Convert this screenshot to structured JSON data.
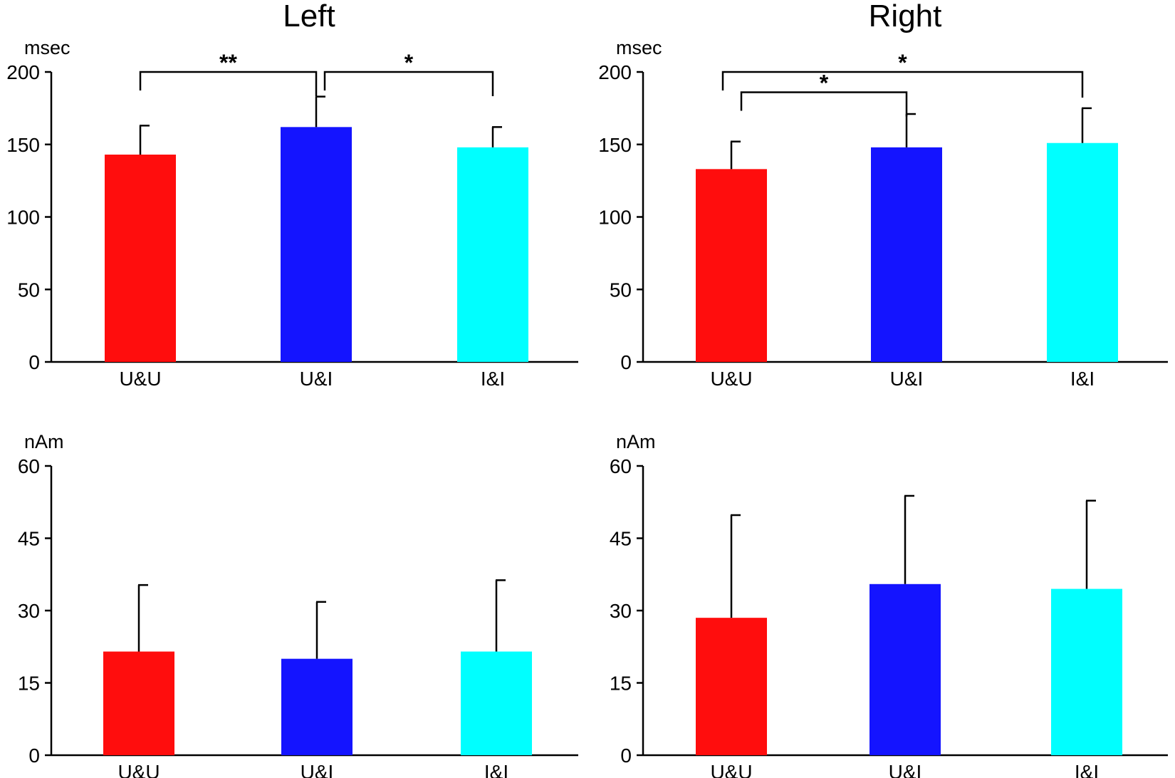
{
  "figure": {
    "left_title": "Left",
    "right_title": "Right",
    "colors": {
      "U&U": "#ff0d0d",
      "U&I": "#1414ff",
      "I&I": "#00ffff",
      "axis": "#000000"
    }
  },
  "chart_data": [
    {
      "id": "left-latency",
      "type": "bar",
      "column": "Left",
      "ylabel": "msec",
      "ylim": [
        0,
        200
      ],
      "yticks": [
        0,
        50,
        100,
        150,
        200
      ],
      "categories": [
        "U&U",
        "U&I",
        "I&I"
      ],
      "values": [
        143,
        162,
        148
      ],
      "errors": [
        20,
        21,
        14
      ],
      "significance": [
        {
          "from": 0,
          "to": 1,
          "label": "**",
          "level": 200
        },
        {
          "from": 1,
          "to": 2,
          "label": "*",
          "level": 200
        }
      ]
    },
    {
      "id": "right-latency",
      "type": "bar",
      "column": "Right",
      "ylabel": "msec",
      "ylim": [
        0,
        200
      ],
      "yticks": [
        0,
        50,
        100,
        150,
        200
      ],
      "categories": [
        "U&U",
        "U&I",
        "I&I"
      ],
      "values": [
        133,
        148,
        151
      ],
      "errors": [
        19,
        23,
        24
      ],
      "significance": [
        {
          "from": 0,
          "to": 1,
          "label": "*",
          "level": 186
        },
        {
          "from": 0,
          "to": 2,
          "label": "*",
          "level": 200
        }
      ]
    },
    {
      "id": "left-amplitude",
      "type": "bar",
      "column": "Left",
      "ylabel": "nAm",
      "ylim": [
        0,
        60
      ],
      "yticks": [
        0,
        15,
        30,
        45,
        60
      ],
      "categories": [
        "U&U",
        "U&I",
        "I&I"
      ],
      "values": [
        21.5,
        20,
        21.5
      ],
      "errors": [
        13.8,
        11.8,
        14.8
      ],
      "significance": []
    },
    {
      "id": "right-amplitude",
      "type": "bar",
      "column": "Right",
      "ylabel": "nAm",
      "ylim": [
        0,
        60
      ],
      "yticks": [
        0,
        15,
        30,
        45,
        60
      ],
      "categories": [
        "U&U",
        "U&I",
        "I&I"
      ],
      "values": [
        28.5,
        35.5,
        34.5
      ],
      "errors": [
        21.3,
        18.3,
        18.3
      ],
      "significance": []
    }
  ]
}
